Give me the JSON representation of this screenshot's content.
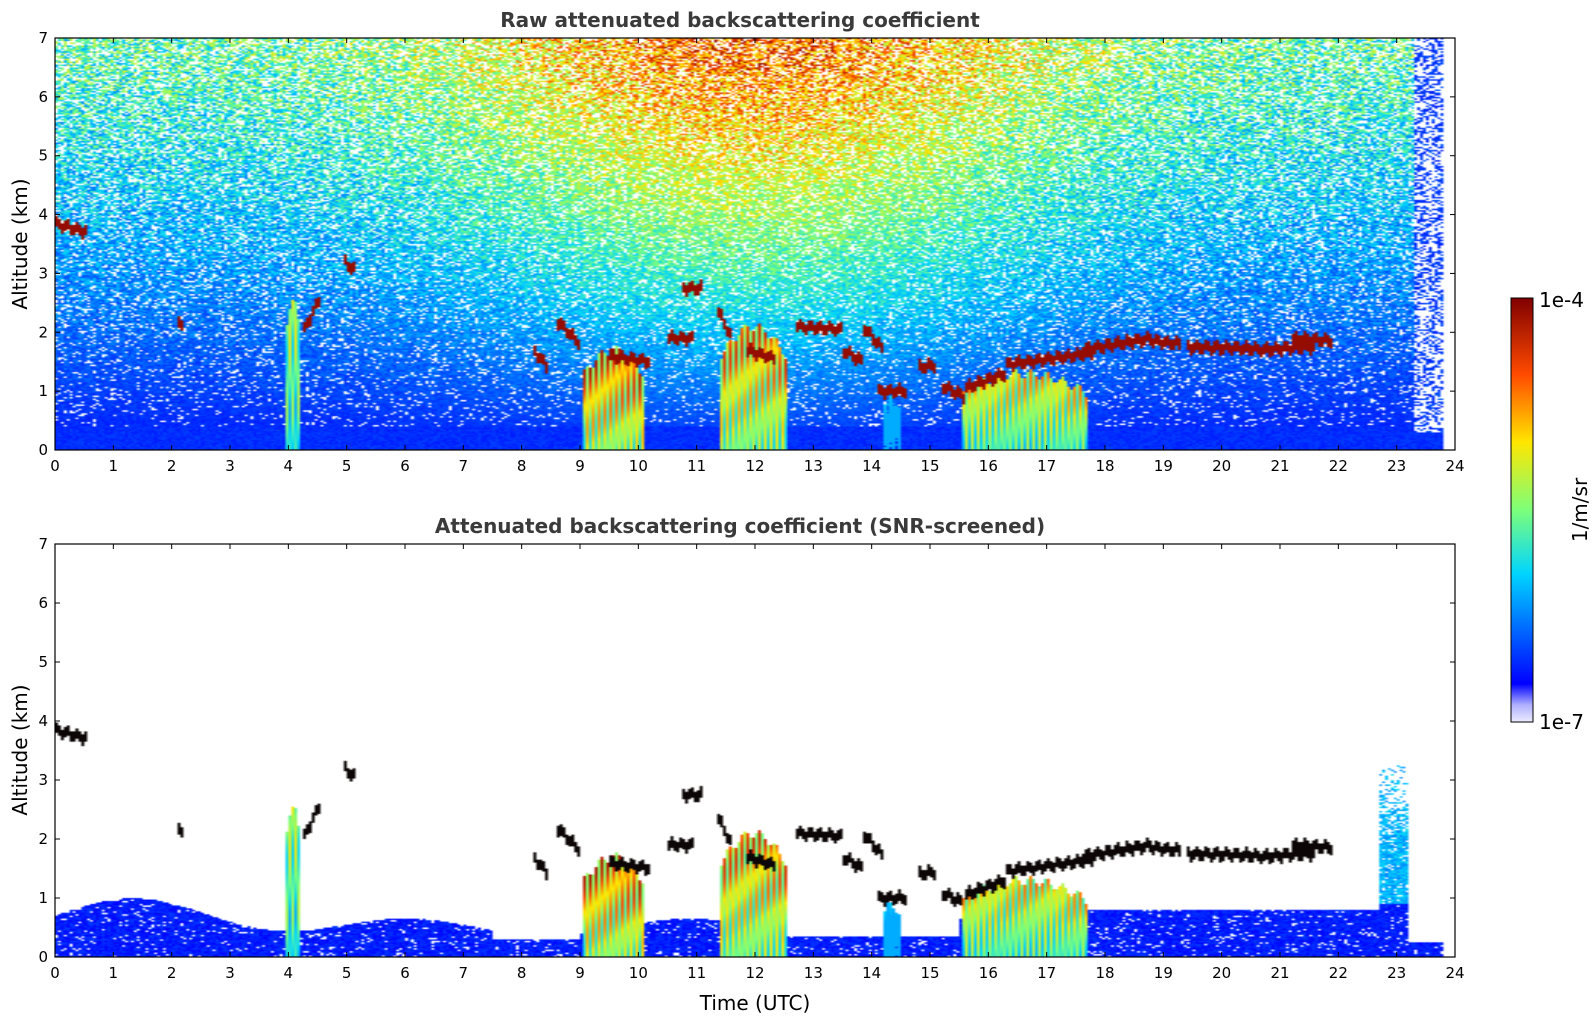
{
  "chart_data": [
    {
      "type": "heatmap",
      "title": "Raw attenuated backscattering coefficient",
      "xlabel": "",
      "ylabel": "Altitude (km)",
      "xlim": [
        0,
        24
      ],
      "ylim": [
        0,
        7
      ],
      "xticks": [
        "0",
        "1",
        "2",
        "3",
        "4",
        "5",
        "6",
        "7",
        "8",
        "9",
        "10",
        "11",
        "12",
        "13",
        "14",
        "15",
        "16",
        "17",
        "18",
        "19",
        "20",
        "21",
        "22",
        "23",
        "24"
      ],
      "yticks": [
        "0",
        "1",
        "2",
        "3",
        "4",
        "5",
        "6",
        "7"
      ],
      "background": "noisy",
      "features": [
        {
          "kind": "cloud",
          "t0": 0.0,
          "t1": 0.55,
          "alt_start": 3.85,
          "alt_end": 3.7
        },
        {
          "kind": "cloud",
          "t0": 2.08,
          "t1": 2.2,
          "alt_start": 2.2,
          "alt_end": 2.15
        },
        {
          "kind": "plume",
          "t0": 3.95,
          "t1": 4.2,
          "top": 2.6,
          "max": 0.7
        },
        {
          "kind": "cloud",
          "t0": 4.25,
          "t1": 4.55,
          "alt_start": 2.0,
          "alt_end": 2.6
        },
        {
          "kind": "cloud",
          "t0": 4.95,
          "t1": 5.15,
          "alt_start": 3.2,
          "alt_end": 3.05
        },
        {
          "kind": "cloud",
          "t0": 8.2,
          "t1": 8.45,
          "alt_start": 1.7,
          "alt_end": 1.4
        },
        {
          "kind": "cloud",
          "t0": 8.6,
          "t1": 9.0,
          "alt_start": 2.2,
          "alt_end": 1.8
        },
        {
          "kind": "plume",
          "t0": 9.05,
          "t1": 10.1,
          "top": 1.7,
          "max": 0.95
        },
        {
          "kind": "cloud",
          "t0": 9.5,
          "t1": 10.2,
          "alt_start": 1.6,
          "alt_end": 1.5
        },
        {
          "kind": "cloud",
          "t0": 10.5,
          "t1": 10.95,
          "alt_start": 1.9,
          "alt_end": 1.9
        },
        {
          "kind": "cloud",
          "t0": 10.75,
          "t1": 11.1,
          "alt_start": 2.75,
          "alt_end": 2.75
        },
        {
          "kind": "cloud",
          "t0": 11.35,
          "t1": 11.6,
          "alt_start": 2.4,
          "alt_end": 1.9
        },
        {
          "kind": "plume",
          "t0": 11.4,
          "t1": 12.55,
          "top": 2.1,
          "max": 0.9
        },
        {
          "kind": "cloud",
          "t0": 11.85,
          "t1": 12.35,
          "alt_start": 1.7,
          "alt_end": 1.55
        },
        {
          "kind": "cloud",
          "t0": 12.7,
          "t1": 13.5,
          "alt_start": 2.1,
          "alt_end": 2.05
        },
        {
          "kind": "cloud",
          "t0": 13.5,
          "t1": 13.85,
          "alt_start": 1.7,
          "alt_end": 1.5
        },
        {
          "kind": "cloud",
          "t0": 13.85,
          "t1": 14.2,
          "alt_start": 2.1,
          "alt_end": 1.7
        },
        {
          "kind": "cloud",
          "t0": 14.1,
          "t1": 14.6,
          "alt_start": 1.0,
          "alt_end": 1.0
        },
        {
          "kind": "plume",
          "t0": 14.2,
          "t1": 14.5,
          "top": 0.9,
          "max": 0.35
        },
        {
          "kind": "cloud",
          "t0": 14.8,
          "t1": 15.1,
          "alt_start": 1.4,
          "alt_end": 1.45
        },
        {
          "kind": "cloud",
          "t0": 15.2,
          "t1": 15.6,
          "alt_start": 1.1,
          "alt_end": 0.9
        },
        {
          "kind": "plume",
          "t0": 15.55,
          "t1": 17.7,
          "top": 1.3,
          "max": 0.8
        },
        {
          "kind": "cloud",
          "t0": 15.6,
          "t1": 16.3,
          "alt_start": 1.05,
          "alt_end": 1.3
        },
        {
          "kind": "cloud",
          "t0": 16.3,
          "t1": 17.8,
          "alt_start": 1.45,
          "alt_end": 1.65
        },
        {
          "kind": "cloud",
          "t0": 17.6,
          "t1": 18.8,
          "alt_start": 1.7,
          "alt_end": 1.9
        },
        {
          "kind": "cloud",
          "t0": 18.8,
          "t1": 19.3,
          "alt_start": 1.85,
          "alt_end": 1.8
        },
        {
          "kind": "cloud",
          "t0": 19.4,
          "t1": 20.6,
          "alt_start": 1.75,
          "alt_end": 1.72
        },
        {
          "kind": "cloud",
          "t0": 20.6,
          "t1": 21.6,
          "alt_start": 1.7,
          "alt_end": 1.75
        },
        {
          "kind": "cloud",
          "t0": 21.2,
          "t1": 21.9,
          "alt_start": 1.9,
          "alt_end": 1.85
        }
      ]
    },
    {
      "type": "heatmap",
      "title": "Attenuated backscattering coefficient (SNR-screened)",
      "xlabel": "Time (UTC)",
      "ylabel": "Altitude (km)",
      "xlim": [
        0,
        24
      ],
      "ylim": [
        0,
        7
      ],
      "xticks": [
        "0",
        "1",
        "2",
        "3",
        "4",
        "5",
        "6",
        "7",
        "8",
        "9",
        "10",
        "11",
        "12",
        "13",
        "14",
        "15",
        "16",
        "17",
        "18",
        "19",
        "20",
        "21",
        "22",
        "23",
        "24"
      ],
      "yticks": [
        "0",
        "1",
        "2",
        "3",
        "4",
        "5",
        "6",
        "7"
      ],
      "background": "screened",
      "features": [
        {
          "kind": "cloud",
          "t0": 0.0,
          "t1": 0.55,
          "alt_start": 3.85,
          "alt_end": 3.7
        },
        {
          "kind": "cloud",
          "t0": 2.08,
          "t1": 2.2,
          "alt_start": 2.2,
          "alt_end": 2.15
        },
        {
          "kind": "plume",
          "t0": 3.95,
          "t1": 4.2,
          "top": 2.6,
          "max": 0.7
        },
        {
          "kind": "cloud",
          "t0": 4.25,
          "t1": 4.55,
          "alt_start": 2.0,
          "alt_end": 2.6
        },
        {
          "kind": "cloud",
          "t0": 4.95,
          "t1": 5.15,
          "alt_start": 3.2,
          "alt_end": 3.05
        },
        {
          "kind": "cloud",
          "t0": 8.2,
          "t1": 8.45,
          "alt_start": 1.7,
          "alt_end": 1.4
        },
        {
          "kind": "cloud",
          "t0": 8.6,
          "t1": 9.0,
          "alt_start": 2.2,
          "alt_end": 1.8
        },
        {
          "kind": "plume",
          "t0": 9.05,
          "t1": 10.1,
          "top": 1.7,
          "max": 0.95
        },
        {
          "kind": "cloud",
          "t0": 9.5,
          "t1": 10.2,
          "alt_start": 1.6,
          "alt_end": 1.5
        },
        {
          "kind": "cloud",
          "t0": 10.5,
          "t1": 10.95,
          "alt_start": 1.9,
          "alt_end": 1.9
        },
        {
          "kind": "cloud",
          "t0": 10.75,
          "t1": 11.1,
          "alt_start": 2.75,
          "alt_end": 2.75
        },
        {
          "kind": "cloud",
          "t0": 11.35,
          "t1": 11.6,
          "alt_start": 2.4,
          "alt_end": 1.9
        },
        {
          "kind": "plume",
          "t0": 11.4,
          "t1": 12.55,
          "top": 2.1,
          "max": 0.9
        },
        {
          "kind": "cloud",
          "t0": 11.85,
          "t1": 12.35,
          "alt_start": 1.7,
          "alt_end": 1.55
        },
        {
          "kind": "cloud",
          "t0": 12.7,
          "t1": 13.5,
          "alt_start": 2.1,
          "alt_end": 2.05
        },
        {
          "kind": "cloud",
          "t0": 13.5,
          "t1": 13.85,
          "alt_start": 1.7,
          "alt_end": 1.5
        },
        {
          "kind": "cloud",
          "t0": 13.85,
          "t1": 14.2,
          "alt_start": 2.1,
          "alt_end": 1.7
        },
        {
          "kind": "cloud",
          "t0": 14.1,
          "t1": 14.6,
          "alt_start": 1.0,
          "alt_end": 1.0
        },
        {
          "kind": "plume",
          "t0": 14.2,
          "t1": 14.5,
          "top": 0.9,
          "max": 0.35
        },
        {
          "kind": "cloud",
          "t0": 14.8,
          "t1": 15.1,
          "alt_start": 1.4,
          "alt_end": 1.45
        },
        {
          "kind": "cloud",
          "t0": 15.2,
          "t1": 15.6,
          "alt_start": 1.1,
          "alt_end": 0.9
        },
        {
          "kind": "plume",
          "t0": 15.55,
          "t1": 17.7,
          "top": 1.3,
          "max": 0.8
        },
        {
          "kind": "cloud",
          "t0": 15.6,
          "t1": 16.3,
          "alt_start": 1.05,
          "alt_end": 1.3
        },
        {
          "kind": "cloud",
          "t0": 16.3,
          "t1": 17.8,
          "alt_start": 1.45,
          "alt_end": 1.65
        },
        {
          "kind": "cloud",
          "t0": 17.6,
          "t1": 18.8,
          "alt_start": 1.7,
          "alt_end": 1.9
        },
        {
          "kind": "cloud",
          "t0": 18.8,
          "t1": 19.3,
          "alt_start": 1.85,
          "alt_end": 1.8
        },
        {
          "kind": "cloud",
          "t0": 19.4,
          "t1": 20.6,
          "alt_start": 1.75,
          "alt_end": 1.72
        },
        {
          "kind": "cloud",
          "t0": 20.6,
          "t1": 21.6,
          "alt_start": 1.7,
          "alt_end": 1.75
        },
        {
          "kind": "cloud",
          "t0": 21.2,
          "t1": 21.9,
          "alt_start": 1.9,
          "alt_end": 1.85
        }
      ]
    }
  ],
  "colorbar": {
    "label": "1/m/sr",
    "max_label": "1e-4",
    "min_label": "1e-7",
    "colormap": "jet",
    "scale": "log"
  },
  "colors": {
    "title": "#3a3a3a",
    "axis": "#000000",
    "background": "#ffffff"
  }
}
